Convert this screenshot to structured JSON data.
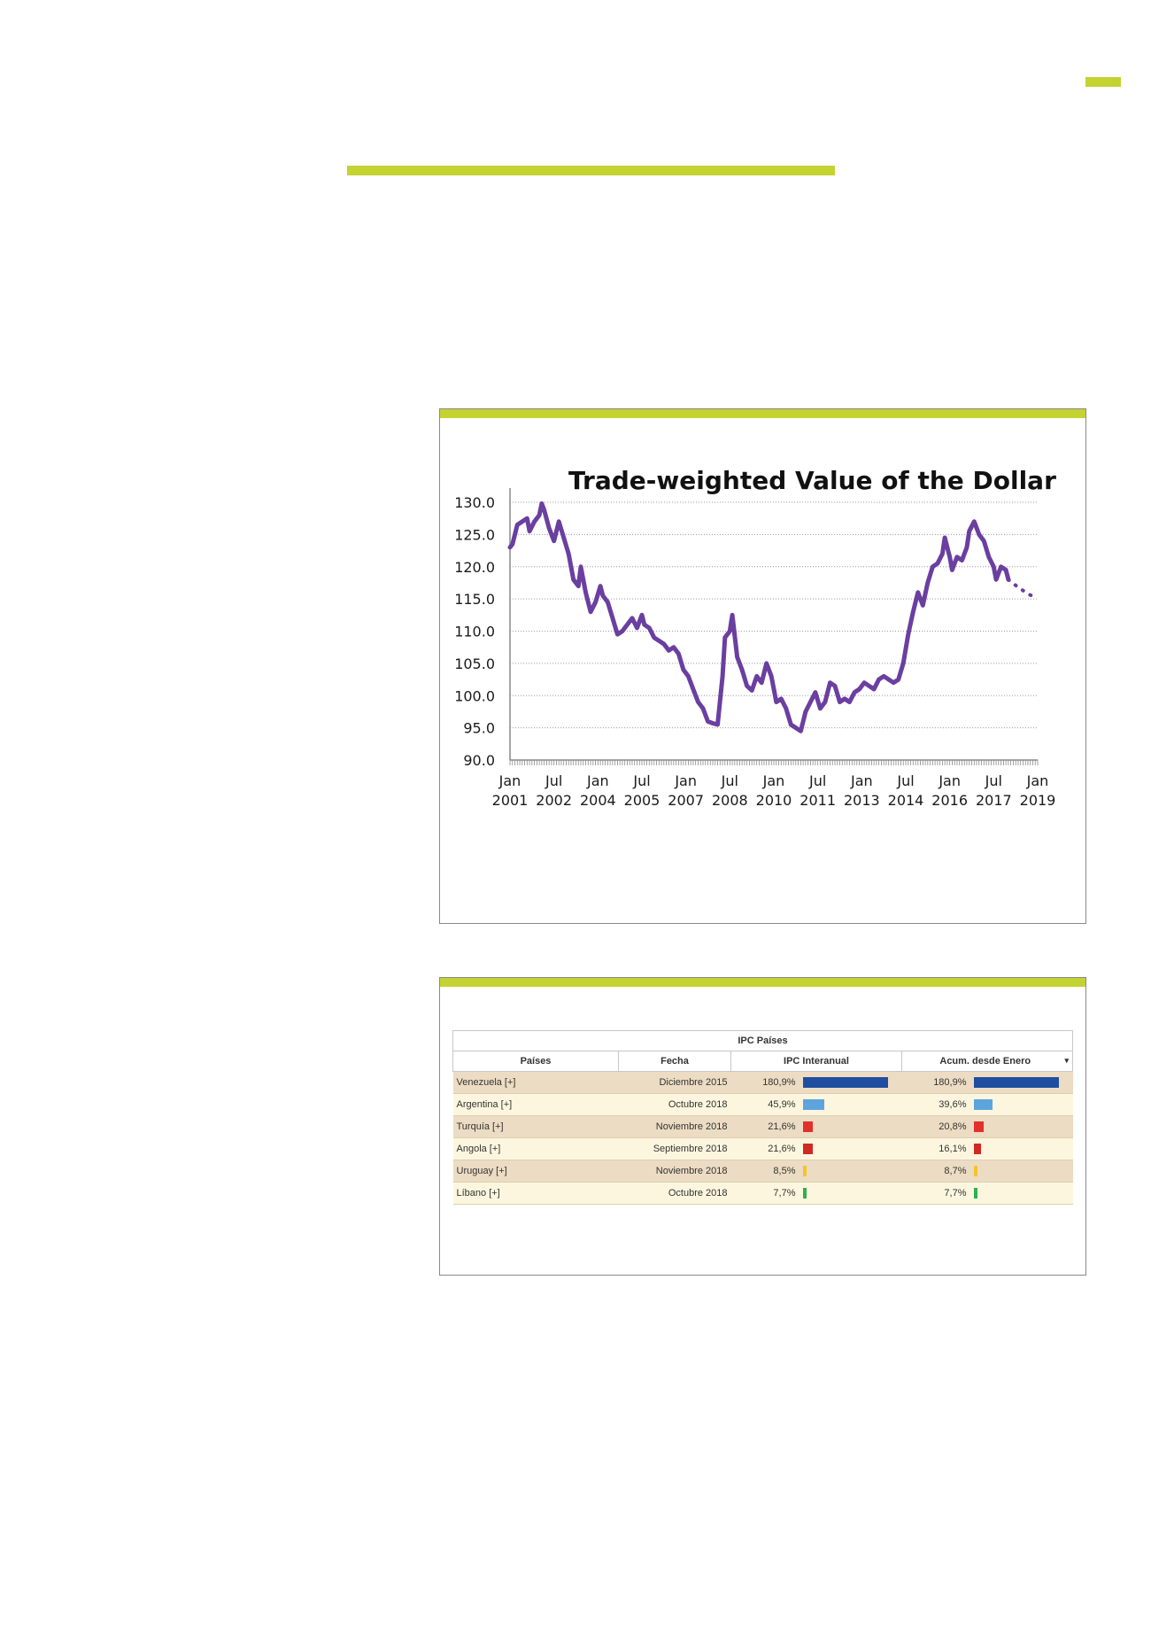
{
  "chart_data": {
    "type": "line",
    "title": "Trade-weighted Value of the Dollar",
    "xlabel": "",
    "ylabel": "",
    "ylim": [
      90,
      130
    ],
    "y_ticks": [
      "130.0",
      "125.0",
      "120.0",
      "115.0",
      "110.0",
      "105.0",
      "100.0",
      "95.0",
      "90.0"
    ],
    "x_tick_labels": [
      {
        "month": "Jan",
        "year": "2001"
      },
      {
        "month": "Jul",
        "year": "2002"
      },
      {
        "month": "Jan",
        "year": "2004"
      },
      {
        "month": "Jul",
        "year": "2005"
      },
      {
        "month": "Jan",
        "year": "2007"
      },
      {
        "month": "Jul",
        "year": "2008"
      },
      {
        "month": "Jan",
        "year": "2010"
      },
      {
        "month": "Jul",
        "year": "2011"
      },
      {
        "month": "Jan",
        "year": "2013"
      },
      {
        "month": "Jul",
        "year": "2014"
      },
      {
        "month": "Jan",
        "year": "2016"
      },
      {
        "month": "Jul",
        "year": "2017"
      },
      {
        "month": "Jan",
        "year": "2019"
      }
    ],
    "x_range": [
      "2001-01",
      "2019-01"
    ],
    "grid": true,
    "line_color": "#6a3fa0",
    "series": [
      {
        "values_actual": [
          [
            "2001-01",
            123.0
          ],
          [
            "2001-02",
            123.5
          ],
          [
            "2001-04",
            126.5
          ],
          [
            "2001-06",
            127.0
          ],
          [
            "2001-08",
            127.5
          ],
          [
            "2001-09",
            125.5
          ],
          [
            "2001-11",
            127.0
          ],
          [
            "2002-01",
            128.0
          ],
          [
            "2002-02",
            129.8
          ],
          [
            "2002-03",
            128.8
          ],
          [
            "2002-05",
            126.0
          ],
          [
            "2002-07",
            124.0
          ],
          [
            "2002-09",
            127.0
          ],
          [
            "2002-11",
            124.5
          ],
          [
            "2003-01",
            122.0
          ],
          [
            "2003-03",
            118.0
          ],
          [
            "2003-05",
            117.0
          ],
          [
            "2003-06",
            120.0
          ],
          [
            "2003-08",
            116.0
          ],
          [
            "2003-10",
            113.0
          ],
          [
            "2003-12",
            114.5
          ],
          [
            "2004-02",
            117.0
          ],
          [
            "2004-03",
            115.5
          ],
          [
            "2004-05",
            114.5
          ],
          [
            "2004-07",
            112.0
          ],
          [
            "2004-09",
            109.5
          ],
          [
            "2004-11",
            110.0
          ],
          [
            "2005-01",
            111.0
          ],
          [
            "2005-03",
            112.0
          ],
          [
            "2005-05",
            110.5
          ],
          [
            "2005-07",
            112.5
          ],
          [
            "2005-08",
            111.0
          ],
          [
            "2005-10",
            110.5
          ],
          [
            "2005-12",
            109.0
          ],
          [
            "2006-02",
            108.5
          ],
          [
            "2006-04",
            108.0
          ],
          [
            "2006-06",
            107.0
          ],
          [
            "2006-08",
            107.5
          ],
          [
            "2006-10",
            106.5
          ],
          [
            "2006-12",
            104.0
          ],
          [
            "2007-02",
            103.0
          ],
          [
            "2007-04",
            101.0
          ],
          [
            "2007-06",
            99.0
          ],
          [
            "2007-08",
            98.0
          ],
          [
            "2007-10",
            96.0
          ],
          [
            "2007-12",
            95.7
          ],
          [
            "2008-02",
            95.5
          ],
          [
            "2008-04",
            103.0
          ],
          [
            "2008-05",
            109.0
          ],
          [
            "2008-07",
            110.0
          ],
          [
            "2008-08",
            112.5
          ],
          [
            "2008-10",
            106.0
          ],
          [
            "2008-12",
            104.0
          ],
          [
            "2009-02",
            101.5
          ],
          [
            "2009-04",
            100.8
          ],
          [
            "2009-06",
            103.0
          ],
          [
            "2009-08",
            102.0
          ],
          [
            "2009-10",
            105.0
          ],
          [
            "2009-12",
            103.0
          ],
          [
            "2010-02",
            99.0
          ],
          [
            "2010-04",
            99.5
          ],
          [
            "2010-06",
            98.0
          ],
          [
            "2010-08",
            95.5
          ],
          [
            "2010-10",
            95.0
          ],
          [
            "2010-12",
            94.5
          ],
          [
            "2011-02",
            97.5
          ],
          [
            "2011-04",
            99.0
          ],
          [
            "2011-06",
            100.5
          ],
          [
            "2011-08",
            98.0
          ],
          [
            "2011-10",
            99.0
          ],
          [
            "2011-12",
            102.0
          ],
          [
            "2012-02",
            101.5
          ],
          [
            "2012-04",
            99.0
          ],
          [
            "2012-06",
            99.5
          ],
          [
            "2012-08",
            99.0
          ],
          [
            "2012-10",
            100.5
          ],
          [
            "2012-12",
            101.0
          ],
          [
            "2013-02",
            102.0
          ],
          [
            "2013-04",
            101.5
          ],
          [
            "2013-06",
            101.0
          ],
          [
            "2013-08",
            102.5
          ],
          [
            "2013-10",
            103.0
          ],
          [
            "2013-12",
            102.5
          ],
          [
            "2014-02",
            102.0
          ],
          [
            "2014-04",
            102.5
          ],
          [
            "2014-06",
            105.0
          ],
          [
            "2014-08",
            109.5
          ],
          [
            "2014-10",
            113.0
          ],
          [
            "2014-12",
            116.0
          ],
          [
            "2015-02",
            114.0
          ],
          [
            "2015-04",
            117.5
          ],
          [
            "2015-06",
            120.0
          ],
          [
            "2015-08",
            120.5
          ],
          [
            "2015-10",
            122.0
          ],
          [
            "2015-11",
            124.5
          ],
          [
            "2016-01",
            121.5
          ],
          [
            "2016-02",
            119.5
          ],
          [
            "2016-04",
            121.5
          ],
          [
            "2016-06",
            121.0
          ],
          [
            "2016-08",
            123.0
          ],
          [
            "2016-09",
            125.5
          ],
          [
            "2016-11",
            127.0
          ],
          [
            "2017-01",
            125.0
          ],
          [
            "2017-03",
            124.0
          ],
          [
            "2017-05",
            121.5
          ],
          [
            "2017-07",
            120.0
          ],
          [
            "2017-08",
            118.0
          ],
          [
            "2017-10",
            120.0
          ],
          [
            "2017-12",
            119.5
          ],
          [
            "2018-01",
            118.0
          ]
        ],
        "values_projected": [
          [
            "2018-01",
            118.0
          ],
          [
            "2018-05",
            116.8
          ],
          [
            "2018-09",
            115.8
          ],
          [
            "2019-01",
            115.0
          ]
        ]
      }
    ]
  },
  "ipc_table": {
    "caption": "IPC Países",
    "columns": [
      "Países",
      "Fecha",
      "IPC Interanual",
      "Acum. desde Enero"
    ],
    "sort_caret": "▾",
    "bar_max": 180.9,
    "rows": [
      {
        "country": "Venezuela [+]",
        "date": "Diciembre 2015",
        "ipc": "180,9%",
        "ipc_value": 180.9,
        "acum": "180,9%",
        "acum_value": 180.9,
        "color": "#1f4ea1"
      },
      {
        "country": "Argentina [+]",
        "date": "Octubre 2018",
        "ipc": "45,9%",
        "ipc_value": 45.9,
        "acum": "39,6%",
        "acum_value": 39.6,
        "color": "#5ea4dc"
      },
      {
        "country": "Turquía [+]",
        "date": "Noviembre 2018",
        "ipc": "21,6%",
        "ipc_value": 21.6,
        "acum": "20,8%",
        "acum_value": 20.8,
        "color": "#e0312b"
      },
      {
        "country": "Angola [+]",
        "date": "Septiembre 2018",
        "ipc": "21,6%",
        "ipc_value": 21.6,
        "acum": "16,1%",
        "acum_value": 16.1,
        "color": "#cf2a24"
      },
      {
        "country": "Uruguay [+]",
        "date": "Noviembre 2018",
        "ipc": "8,5%",
        "ipc_value": 8.5,
        "acum": "8,7%",
        "acum_value": 8.7,
        "color": "#f4c42c"
      },
      {
        "country": "Líbano [+]",
        "date": "Octubre 2018",
        "ipc": "7,7%",
        "ipc_value": 7.7,
        "acum": "7,7%",
        "acum_value": 7.7,
        "color": "#2bb24c"
      }
    ]
  }
}
